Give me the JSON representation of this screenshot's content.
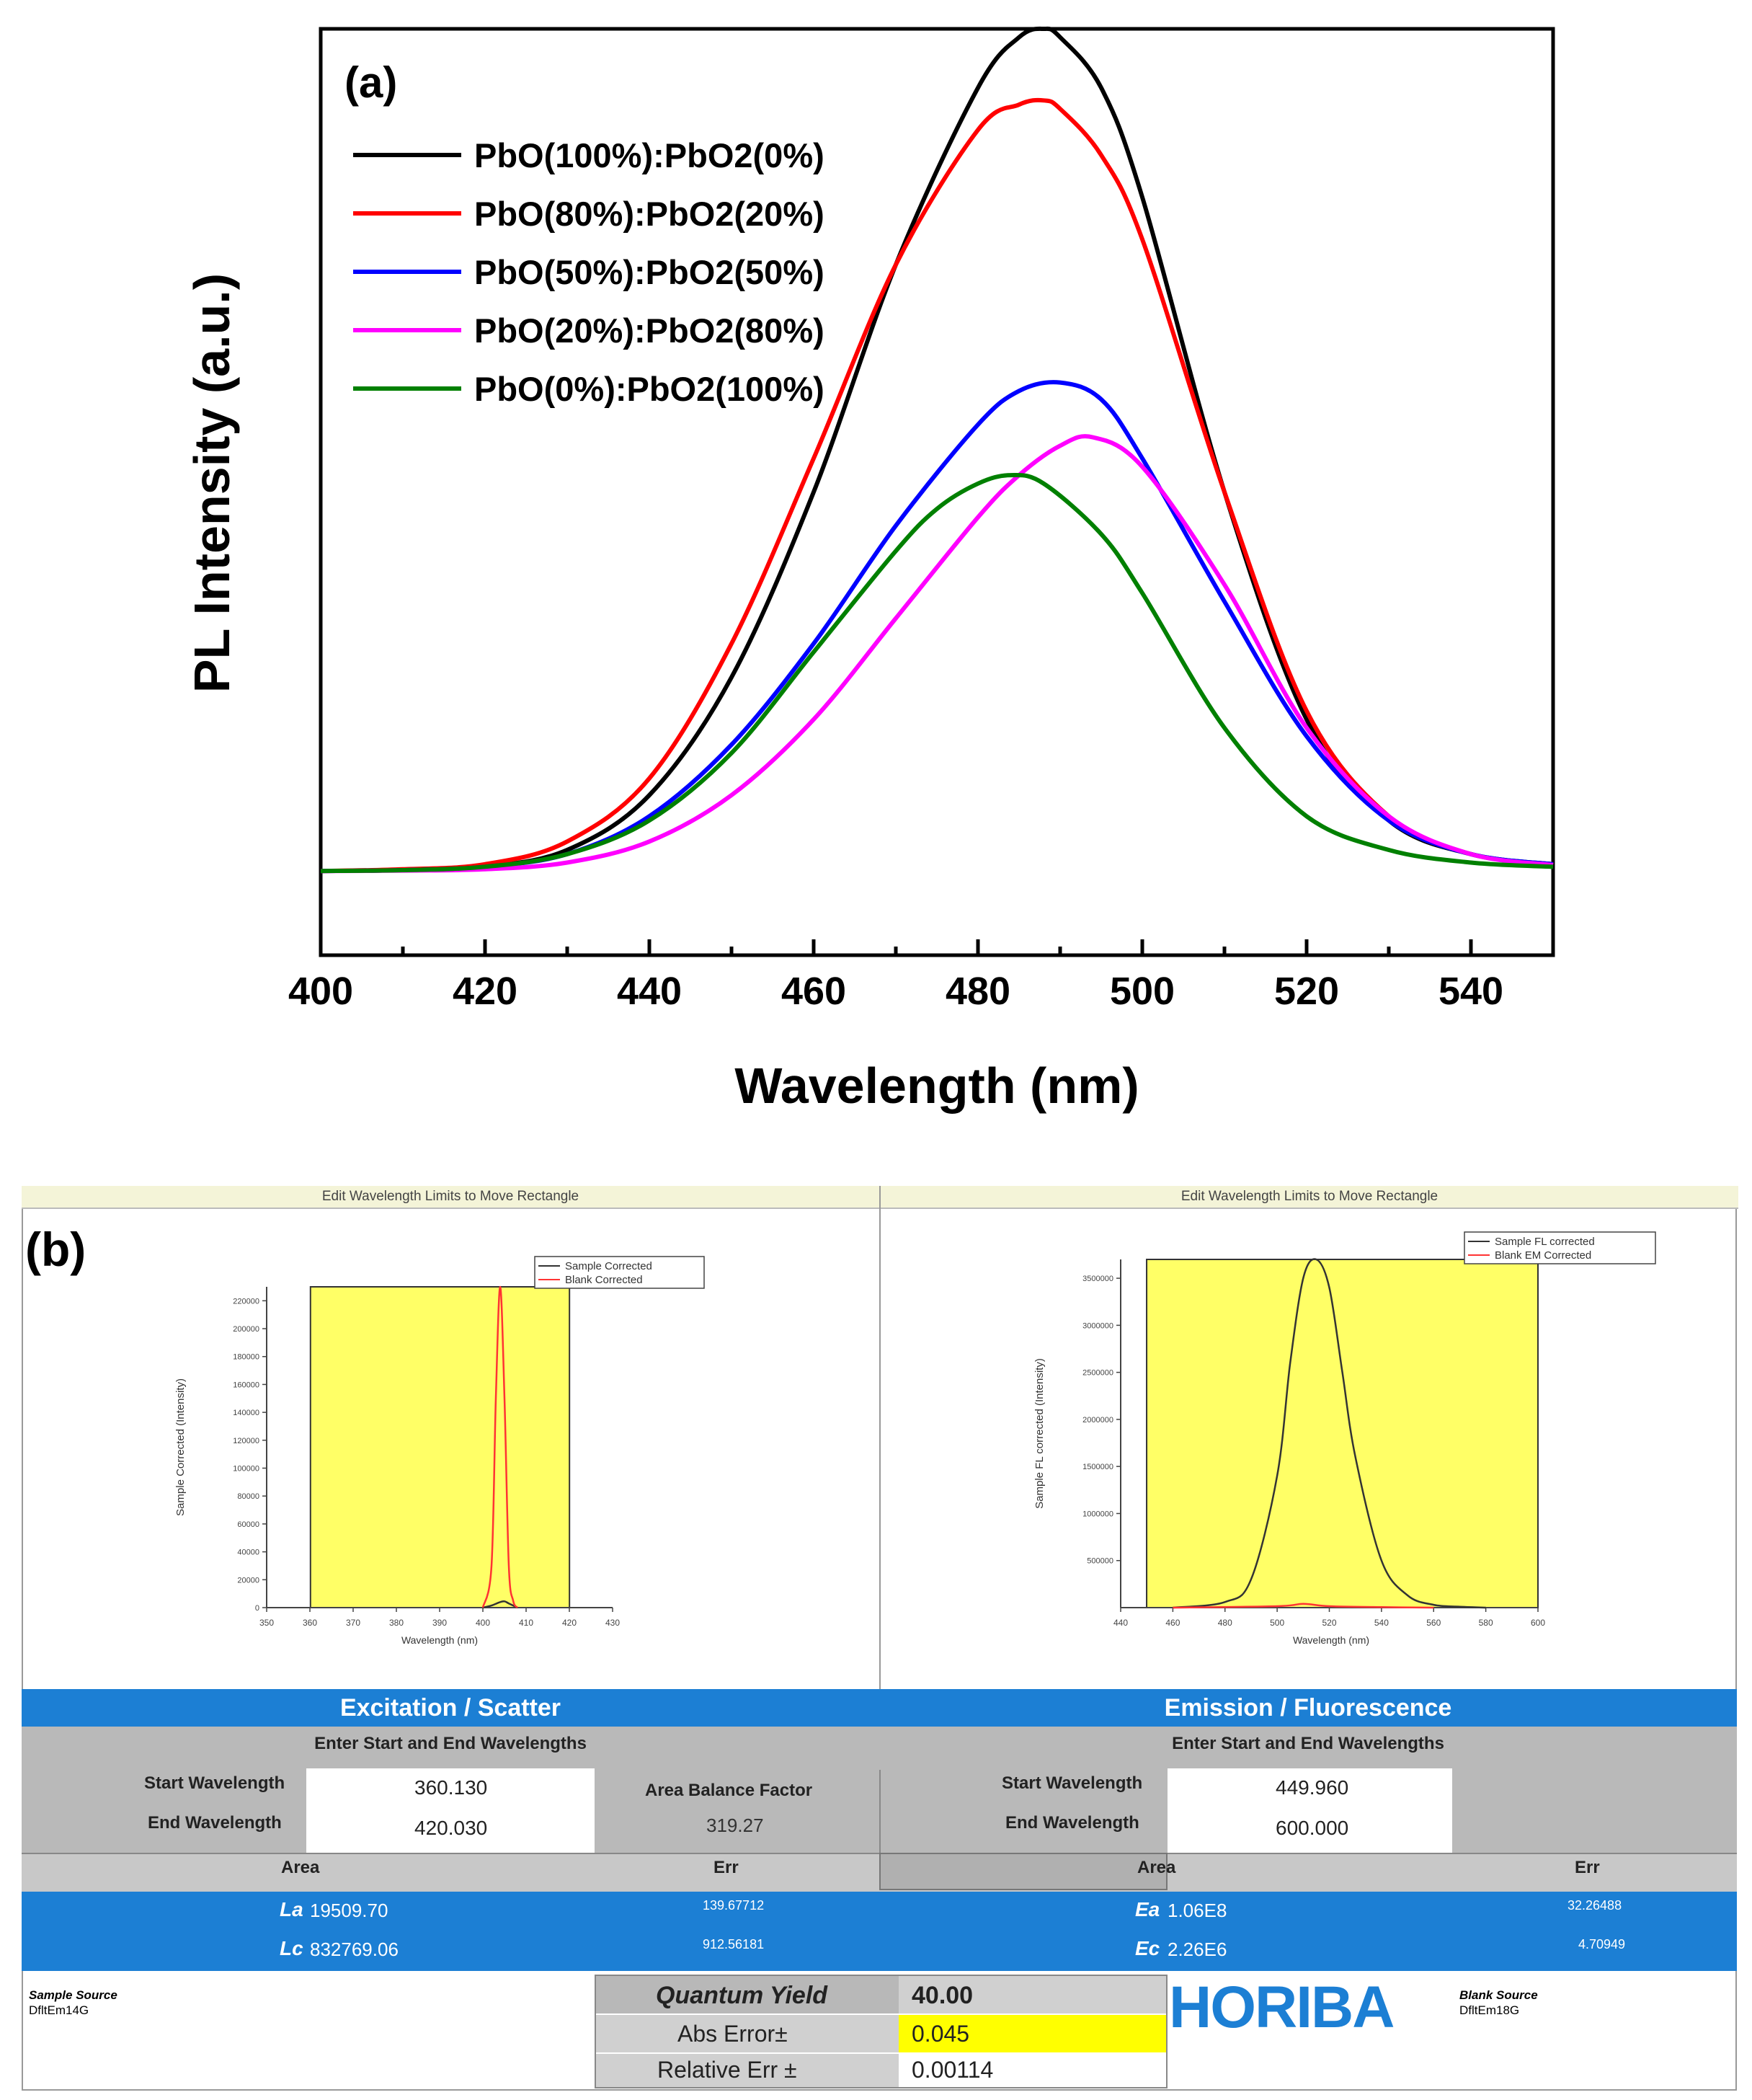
{
  "panel_a": {
    "label": "(a)",
    "legend": [
      {
        "name": "PbO(100%):PbO2(0%)",
        "color": "#000000"
      },
      {
        "name": "PbO(80%):PbO2(20%)",
        "color": "#ff0000"
      },
      {
        "name": "PbO(50%):PbO2(50%)",
        "color": "#0000ff"
      },
      {
        "name": "PbO(20%):PbO2(80%)",
        "color": "#ff00ff"
      },
      {
        "name": "PbO(0%):PbO2(100%)",
        "color": "#008000"
      }
    ]
  },
  "chart_data": [
    {
      "type": "line",
      "title": "",
      "xlabel": "Wavelength (nm)",
      "ylabel": "PL Intensity (a.u.)",
      "xlim": [
        400,
        550
      ],
      "ylim": [
        -0.1,
        1.0
      ],
      "xticks": [
        400,
        420,
        440,
        460,
        480,
        500,
        520,
        540
      ],
      "series": [
        {
          "name": "PbO(100%):PbO2(0%)",
          "color": "#000000",
          "x": [
            400,
            410,
            420,
            430,
            440,
            450,
            460,
            470,
            480,
            485,
            488,
            490,
            495,
            500,
            510,
            520,
            530,
            540,
            550
          ],
          "y": [
            0,
            0.001,
            0.005,
            0.025,
            0.09,
            0.23,
            0.45,
            0.72,
            0.93,
            0.99,
            1.0,
            0.99,
            0.93,
            0.8,
            0.45,
            0.18,
            0.06,
            0.02,
            0.008
          ]
        },
        {
          "name": "PbO(80%):PbO2(20%)",
          "color": "#ff0000",
          "x": [
            400,
            410,
            420,
            430,
            440,
            450,
            460,
            470,
            480,
            485,
            488,
            490,
            495,
            500,
            510,
            520,
            530,
            540,
            550
          ],
          "y": [
            0,
            0.002,
            0.008,
            0.035,
            0.11,
            0.27,
            0.49,
            0.72,
            0.88,
            0.91,
            0.915,
            0.905,
            0.85,
            0.75,
            0.45,
            0.19,
            0.065,
            0.02,
            0.008
          ]
        },
        {
          "name": "PbO(50%):PbO2(50%)",
          "color": "#0000ff",
          "x": [
            400,
            410,
            420,
            430,
            440,
            450,
            460,
            470,
            480,
            485,
            490,
            495,
            500,
            510,
            520,
            530,
            540,
            550
          ],
          "y": [
            0,
            0.001,
            0.005,
            0.02,
            0.065,
            0.15,
            0.27,
            0.41,
            0.53,
            0.57,
            0.58,
            0.56,
            0.49,
            0.32,
            0.16,
            0.06,
            0.02,
            0.008
          ]
        },
        {
          "name": "PbO(20%):PbO2(80%)",
          "color": "#ff00ff",
          "x": [
            400,
            410,
            420,
            430,
            440,
            450,
            460,
            470,
            480,
            485,
            490,
            494,
            500,
            510,
            520,
            530,
            540,
            550
          ],
          "y": [
            0,
            0.0005,
            0.002,
            0.01,
            0.035,
            0.09,
            0.18,
            0.3,
            0.42,
            0.47,
            0.505,
            0.515,
            0.48,
            0.34,
            0.17,
            0.065,
            0.02,
            0.007
          ]
        },
        {
          "name": "PbO(0%):PbO2(100%)",
          "color": "#008000",
          "x": [
            400,
            410,
            420,
            430,
            440,
            450,
            460,
            470,
            475,
            480,
            484,
            488,
            495,
            500,
            510,
            520,
            530,
            540,
            550
          ],
          "y": [
            0,
            0.001,
            0.005,
            0.02,
            0.06,
            0.14,
            0.26,
            0.38,
            0.43,
            0.46,
            0.47,
            0.46,
            0.4,
            0.33,
            0.17,
            0.065,
            0.025,
            0.01,
            0.005
          ]
        }
      ]
    },
    {
      "type": "line",
      "title": "Edit Wavelength Limits to Move Rectangle",
      "xlabel": "Wavelength (nm)",
      "ylabel": "Sample Corrected (Intensity)",
      "xlim": [
        350,
        430
      ],
      "ylim": [
        0,
        230000
      ],
      "xticks": [
        "350",
        "360",
        "370",
        "380",
        "390",
        "400",
        "410",
        "420",
        "430"
      ],
      "yticks": [
        "0",
        "20000",
        "40000",
        "60000",
        "80000",
        "100000",
        "120000",
        "140000",
        "160000",
        "180000",
        "200000",
        "220000"
      ],
      "highlight_range": [
        360.13,
        420.03
      ],
      "series": [
        {
          "name": "Sample Corrected",
          "color": "#333333",
          "x": [
            400,
            402,
            404,
            405,
            406,
            408
          ],
          "y": [
            0,
            1500,
            4000,
            4500,
            3000,
            0
          ]
        },
        {
          "name": "Blank Corrected",
          "color": "#ff3333",
          "x": [
            400,
            402,
            403,
            404,
            405,
            406,
            407,
            408
          ],
          "y": [
            0,
            30000,
            150000,
            230000,
            150000,
            30000,
            5000,
            0
          ]
        }
      ]
    },
    {
      "type": "line",
      "title": "Edit Wavelength Limits to Move Rectangle",
      "xlabel": "Wavelength (nm)",
      "ylabel": "Sample FL corrected (Intensity)",
      "xlim": [
        440,
        600
      ],
      "ylim": [
        0,
        3700000
      ],
      "xticks": [
        "440",
        "460",
        "480",
        "500",
        "520",
        "540",
        "560",
        "580",
        "600"
      ],
      "yticks": [
        "500000",
        "1000000",
        "1500000",
        "2000000",
        "2500000",
        "3000000",
        "3500000"
      ],
      "highlight_range": [
        449.96,
        600.0
      ],
      "series": [
        {
          "name": "Sample FL corrected",
          "color": "#333333",
          "x": [
            460,
            480,
            490,
            500,
            505,
            510,
            515,
            520,
            525,
            530,
            540,
            550,
            560,
            570,
            580
          ],
          "y": [
            0,
            60000,
            300000,
            1400000,
            2600000,
            3500000,
            3700000,
            3400000,
            2500000,
            1600000,
            500000,
            130000,
            30000,
            10000,
            0
          ]
        },
        {
          "name": "Blank EM Corrected",
          "color": "#ff3333",
          "x": [
            460,
            500,
            510,
            520,
            540,
            560
          ],
          "y": [
            0,
            15000,
            40000,
            15000,
            5000,
            0
          ]
        }
      ]
    }
  ],
  "panel_b": {
    "label": "(b)",
    "left_header": "Edit Wavelength Limits to Move Rectangle",
    "right_header": "Edit Wavelength Limits to Move Rectangle",
    "excitation_title": "Excitation / Scatter",
    "emission_title": "Emission / Fluorescence",
    "enter_left": "Enter Start and End Wavelengths",
    "enter_right": "Enter Start and End Wavelengths",
    "start_label_left": "Start Wavelength",
    "end_label_left": "End Wavelength",
    "start_value_left": "360.130",
    "end_value_left": "420.030",
    "area_balance_label": "Area Balance Factor",
    "area_balance_value": "319.27",
    "start_label_right": "Start Wavelength",
    "end_label_right": "End Wavelength",
    "start_value_right": "449.960",
    "end_value_right": "600.000",
    "area_header_left": "Area",
    "err_header_left": "Err",
    "area_header_right": "Area",
    "err_header_right": "Err",
    "la_label": "La",
    "la_value": "19509.70",
    "la_err": "139.67712",
    "lc_label": "Lc",
    "lc_value": "832769.06",
    "lc_err": "912.56181",
    "ea_label": "Ea",
    "ea_value": "1.06E8",
    "ea_err": "32.26488",
    "ec_label": "Ec",
    "ec_value": "2.26E6",
    "ec_err": "4.70949",
    "sample_source_label": "Sample Source",
    "sample_source_value": "DfltEm14G",
    "blank_source_label": "Blank Source",
    "blank_source_value": "DfltEm18G",
    "qy_label": "Quantum Yield",
    "qy_value": "40.00",
    "abs_err_label": "Abs Error±",
    "abs_err_value": "0.045",
    "rel_err_label": "Relative Err ±",
    "rel_err_value": "0.00114",
    "brand": "HORIBA"
  }
}
